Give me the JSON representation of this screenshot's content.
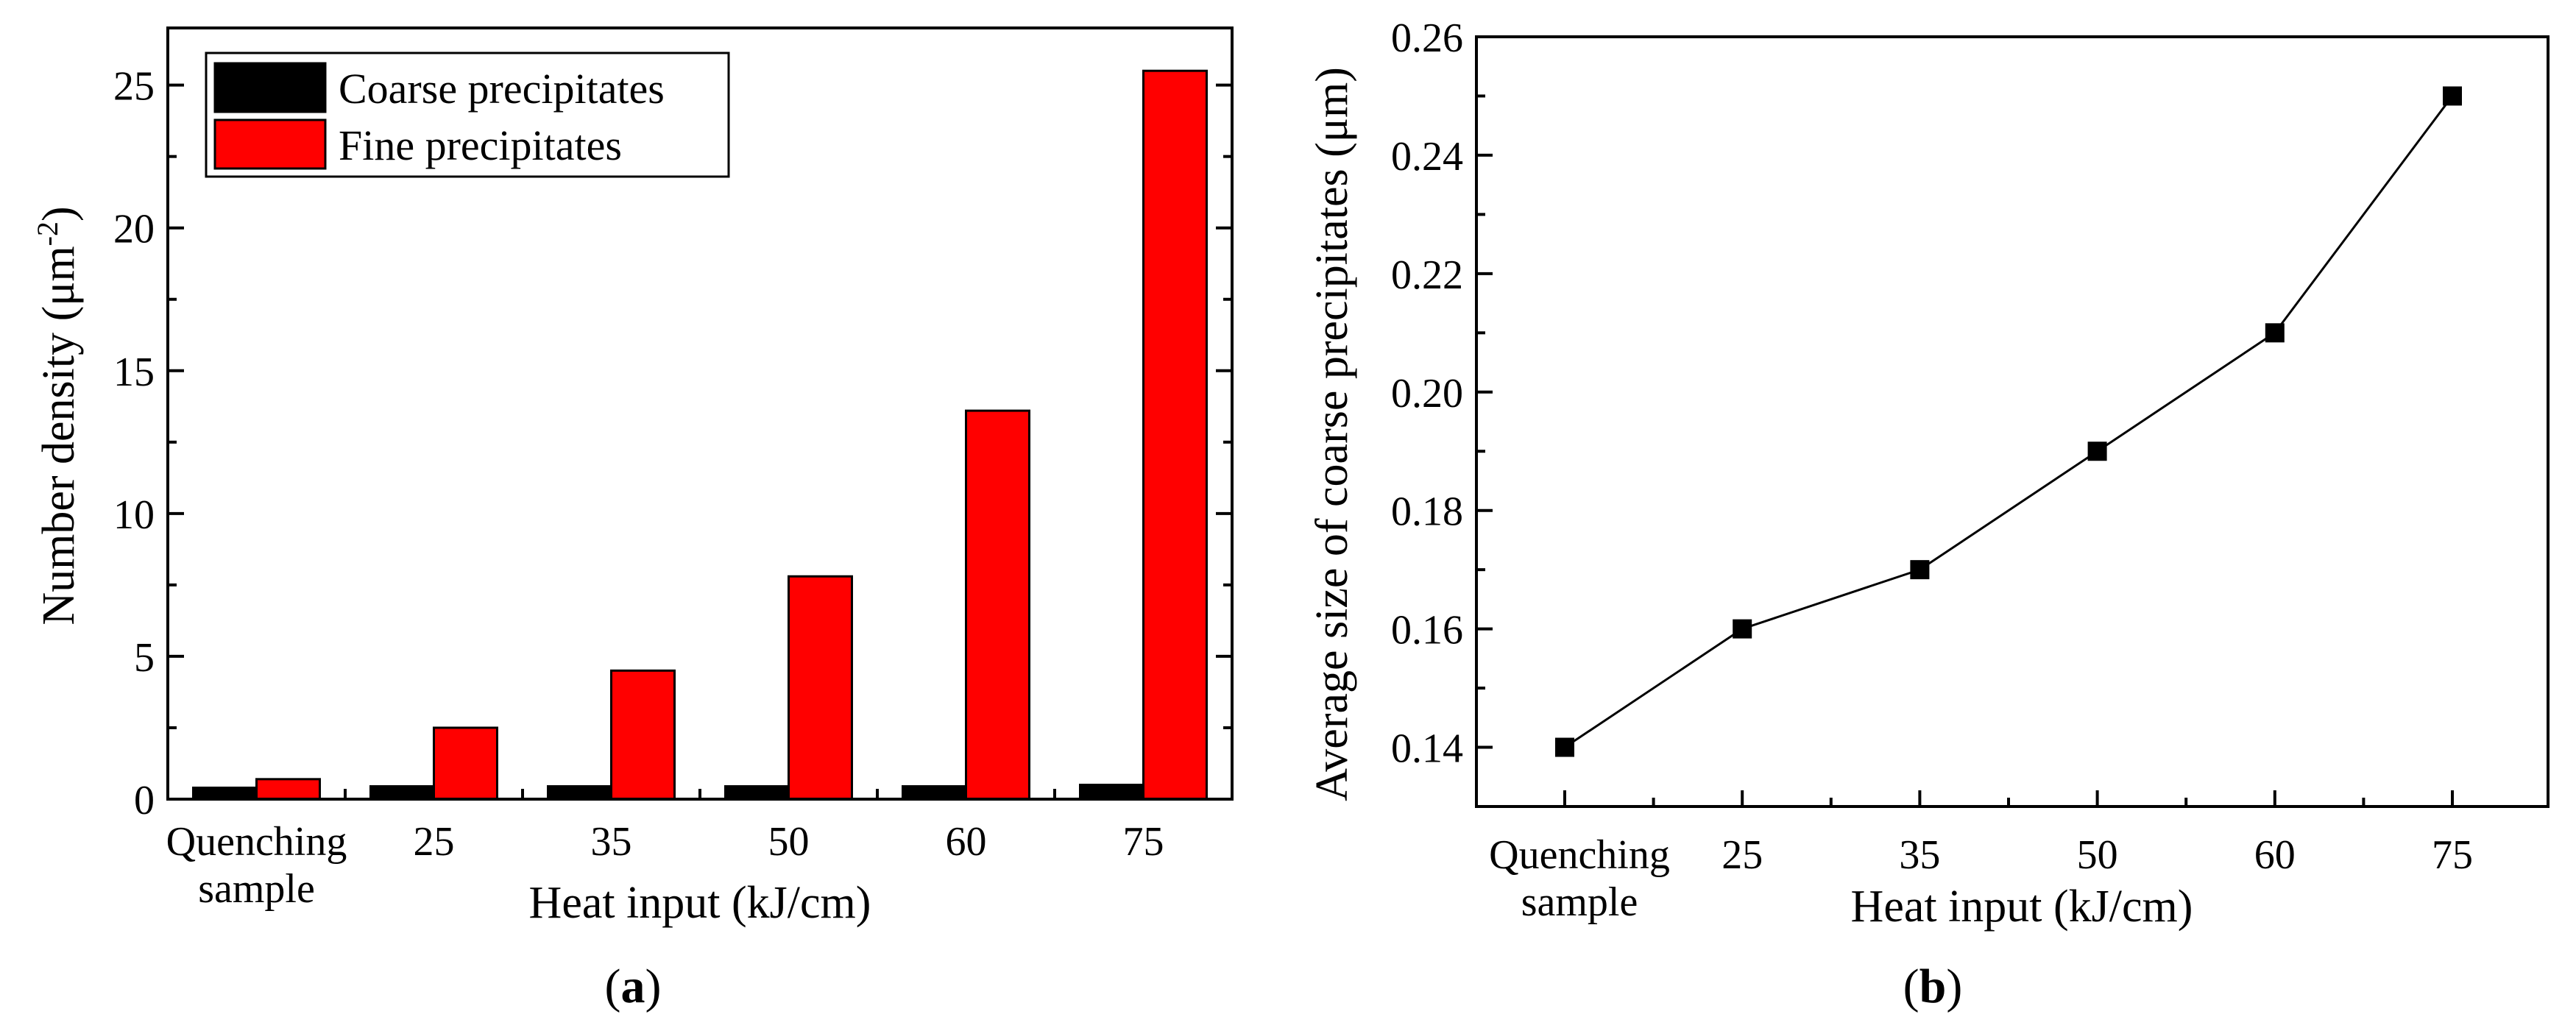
{
  "colors": {
    "coarse": "#000000",
    "fine": "#ff0000",
    "axis": "#000000",
    "marker": "#000000"
  },
  "chart_data": [
    {
      "id": "a",
      "type": "bar",
      "caption_open": "(",
      "caption_letter": "a",
      "caption_close": ")",
      "categories": [
        "Quenching sample",
        "25",
        "35",
        "50",
        "60",
        "75"
      ],
      "category_lines": [
        [
          "Quenching",
          "sample"
        ],
        [
          "25"
        ],
        [
          "35"
        ],
        [
          "50"
        ],
        [
          "60"
        ],
        [
          "75"
        ]
      ],
      "series": [
        {
          "name": "Coarse precipitates",
          "values": [
            0.4,
            0.45,
            0.45,
            0.45,
            0.45,
            0.5
          ]
        },
        {
          "name": "Fine precipitates",
          "values": [
            0.7,
            2.5,
            4.5,
            7.8,
            13.6,
            25.5
          ]
        }
      ],
      "xlabel": "Heat input (kJ/cm)",
      "ylabel_main": "Number density (μm",
      "ylabel_sup": "-2",
      "ylabel_close": ")",
      "ylim": [
        0,
        27
      ],
      "yticks": [
        0,
        5,
        10,
        15,
        20,
        25
      ],
      "minor_yticks": [
        2.5,
        7.5,
        12.5,
        17.5,
        22.5
      ],
      "legend_position": "top-left"
    },
    {
      "id": "b",
      "type": "line",
      "caption_open": "(",
      "caption_letter": "b",
      "caption_close": ")",
      "categories": [
        "Quenching sample",
        "25",
        "35",
        "50",
        "60",
        "75"
      ],
      "category_lines": [
        [
          "Quenching",
          "sample"
        ],
        [
          "25"
        ],
        [
          "35"
        ],
        [
          "50"
        ],
        [
          "60"
        ],
        [
          "75"
        ]
      ],
      "series": [
        {
          "name": "Average size of coarse precipitates",
          "values": [
            0.14,
            0.16,
            0.17,
            0.19,
            0.21,
            0.25
          ]
        }
      ],
      "xlabel": "Heat input (kJ/cm)",
      "ylabel": "Average size of coarse precipitates (μm)",
      "ylim": [
        0.13,
        0.26
      ],
      "yticks": [
        "0.14",
        "0.16",
        "0.18",
        "0.20",
        "0.22",
        "0.24",
        "0.26"
      ],
      "minor_yticks": [
        0.13,
        0.15,
        0.17,
        0.19,
        0.21,
        0.23,
        0.25
      ]
    }
  ]
}
